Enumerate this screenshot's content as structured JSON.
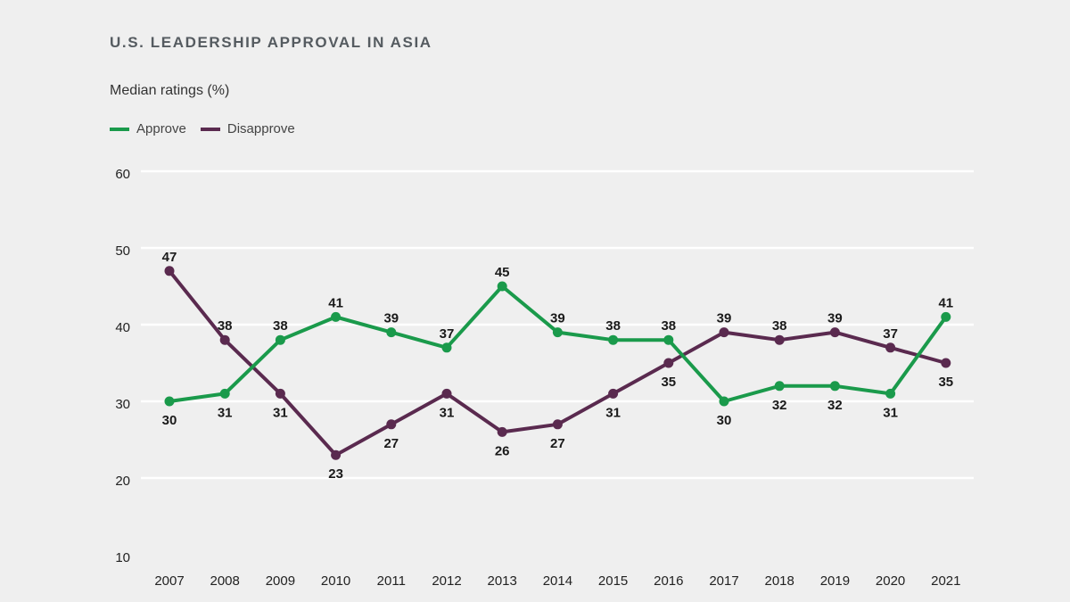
{
  "chart_data": {
    "type": "line",
    "title": "U.S. LEADERSHIP APPROVAL IN ASIA",
    "subtitle": "Median ratings (%)",
    "x": [
      "2007",
      "2008",
      "2009",
      "2010",
      "2011",
      "2012",
      "2013",
      "2014",
      "2015",
      "2016",
      "2017",
      "2018",
      "2019",
      "2020",
      "2021"
    ],
    "ylim": [
      10,
      60
    ],
    "yticks": [
      10,
      20,
      30,
      40,
      50,
      60
    ],
    "grid": true,
    "legend_position": "top-left",
    "series": [
      {
        "name": "Approve",
        "color": "#1a9a4b",
        "values": [
          30,
          31,
          38,
          41,
          39,
          37,
          45,
          39,
          38,
          38,
          30,
          32,
          32,
          31,
          41
        ],
        "label_pos": [
          "below",
          "below",
          "above",
          "above",
          "above",
          "above",
          "above",
          "above",
          "above",
          "above",
          "below",
          "below",
          "below",
          "below",
          "above"
        ]
      },
      {
        "name": "Disapprove",
        "color": "#5a2a4f",
        "values": [
          47,
          38,
          31,
          23,
          27,
          31,
          26,
          27,
          31,
          35,
          39,
          38,
          39,
          37,
          35
        ],
        "label_pos": [
          "above",
          "above",
          "below",
          "below",
          "below",
          "below",
          "below",
          "below",
          "below",
          "below",
          "above",
          "above",
          "above",
          "above",
          "below"
        ]
      }
    ]
  }
}
